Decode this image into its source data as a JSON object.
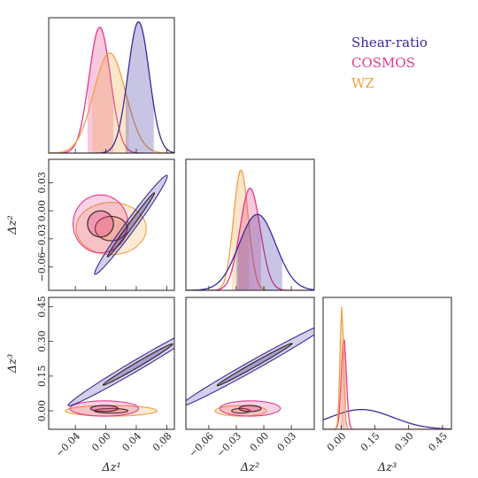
{
  "chart_data": {
    "type": "corner",
    "parameters": [
      "Δz¹",
      "Δz²",
      "Δz³"
    ],
    "colors": {
      "Shear-ratio": "#3b2a9c",
      "COSMOS": "#e5388a",
      "WZ": "#f0a043"
    },
    "legend": {
      "placement": "top-right",
      "entries": [
        "Shear-ratio",
        "COSMOS",
        "WZ"
      ]
    },
    "axes": {
      "z1": {
        "range": [
          -0.075,
          0.09
        ],
        "ticks": [
          -0.04,
          0.0,
          0.04,
          0.08
        ],
        "tick_labels": [
          "−0.04",
          "0.00",
          "0.04",
          "0.08"
        ],
        "label": "Δz¹"
      },
      "z2": {
        "range": [
          -0.085,
          0.055
        ],
        "ticks": [
          -0.06,
          -0.03,
          0.0,
          0.03
        ],
        "tick_labels": [
          "−0.06",
          "−0.03",
          "0.00",
          "0.03"
        ],
        "label": "Δz²"
      },
      "z3": {
        "range": [
          -0.08,
          0.49
        ],
        "ticks": [
          0.0,
          0.15,
          0.3,
          0.45
        ],
        "tick_labels": [
          "0.00",
          "0.15",
          "0.30",
          "0.45"
        ],
        "label": "Δz³"
      }
    },
    "marginals": {
      "z1": [
        {
          "name": "COSMOS",
          "mean": -0.008,
          "sigma": 0.014,
          "peak": 0.93,
          "band": [
            -0.024,
            0.01
          ]
        },
        {
          "name": "WZ",
          "mean": 0.005,
          "sigma": 0.021,
          "peak": 0.74,
          "band": [
            -0.018,
            0.03
          ]
        },
        {
          "name": "Shear-ratio",
          "mean": 0.043,
          "sigma": 0.014,
          "peak": 0.97,
          "band": [
            0.026,
            0.063
          ]
        }
      ],
      "z2": [
        {
          "name": "WZ",
          "mean": -0.025,
          "sigma": 0.008,
          "peak": 0.92,
          "band": [
            -0.035,
            -0.016
          ]
        },
        {
          "name": "COSMOS",
          "mean": -0.015,
          "sigma": 0.011,
          "peak": 0.78,
          "band": [
            -0.028,
            -0.003
          ]
        },
        {
          "name": "Shear-ratio",
          "mean": -0.007,
          "sigma": 0.02,
          "peak": 0.58,
          "band": [
            -0.03,
            0.02
          ]
        }
      ],
      "z3": [
        {
          "name": "Shear-ratio",
          "mean": 0.09,
          "sigma": 0.14,
          "peak": 0.15,
          "band": null
        },
        {
          "name": "COSMOS",
          "mean": 0.012,
          "sigma": 0.011,
          "peak": 0.7,
          "band": [
            0.0,
            0.022
          ]
        },
        {
          "name": "WZ",
          "mean": 0.003,
          "sigma": 0.008,
          "peak": 0.93,
          "band": [
            -0.006,
            0.012
          ]
        }
      ]
    },
    "contours": {
      "z1-z2": [
        {
          "name": "WZ",
          "cx": 0.007,
          "cy": -0.019,
          "r68": [
            0.021,
            0.013
          ],
          "r95": [
            0.046,
            0.028
          ],
          "rotation_deg": 0
        },
        {
          "name": "COSMOS",
          "cx": -0.007,
          "cy": -0.014,
          "r68": [
            0.017,
            0.014
          ],
          "r95": [
            0.036,
            0.031
          ],
          "rotation_deg": 0
        },
        {
          "name": "Shear-ratio",
          "cx": 0.033,
          "cy": -0.015,
          "r68": [
            0.046,
            0.0028
          ],
          "r95": [
            0.071,
            0.0065
          ],
          "rotation_deg": 48
        }
      ],
      "z1-z3": [
        {
          "name": "WZ",
          "cx": 0.007,
          "cy": 0.0,
          "r68": [
            0.022,
            0.01
          ],
          "r95": [
            0.06,
            0.023
          ],
          "rotation_deg": 0
        },
        {
          "name": "COSMOS",
          "cx": -0.002,
          "cy": 0.01,
          "r68": [
            0.018,
            0.013
          ],
          "r95": [
            0.045,
            0.033
          ],
          "rotation_deg": 0
        },
        {
          "name": "Shear-ratio",
          "cx": 0.042,
          "cy": 0.2,
          "r68": [
            0.1,
            0.0055
          ],
          "r95": [
            0.2,
            0.012
          ],
          "rotation_deg": 63
        }
      ],
      "z2-z3": [
        {
          "name": "WZ",
          "cx": -0.025,
          "cy": 0.0,
          "r68": [
            0.01,
            0.01
          ],
          "r95": [
            0.028,
            0.023
          ],
          "rotation_deg": 0
        },
        {
          "name": "COSMOS",
          "cx": -0.015,
          "cy": 0.01,
          "r68": [
            0.012,
            0.013
          ],
          "r95": [
            0.033,
            0.033
          ],
          "rotation_deg": 0
        },
        {
          "name": "Shear-ratio",
          "cx": -0.01,
          "cy": 0.2,
          "r68": [
            0.1,
            0.0045
          ],
          "r95": [
            0.2,
            0.01
          ],
          "rotation_deg": 66
        }
      ]
    }
  }
}
